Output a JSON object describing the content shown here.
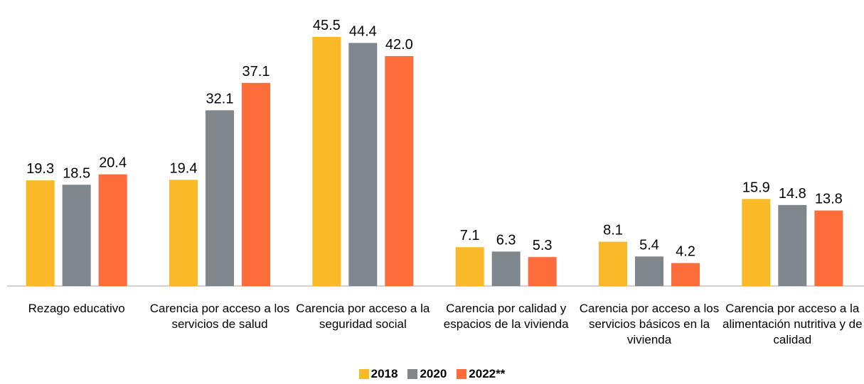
{
  "chart_data": {
    "type": "bar",
    "categories": [
      "Rezago educativo",
      "Carencia por acceso a los servicios de salud",
      "Carencia por acceso a la seguridad social",
      "Carencia por calidad y espacios de la vivienda",
      "Carencia por acceso a los servicios básicos en la vivienda",
      "Carencia por acceso a la alimentación nutritiva y de calidad"
    ],
    "series": [
      {
        "name": "2018",
        "color": "#f9b928",
        "values": [
          19.3,
          19.4,
          45.5,
          7.1,
          8.1,
          15.9
        ],
        "value_labels": [
          "19.3",
          "19.4",
          "45.5",
          "7.1",
          "8.1",
          "15.9"
        ]
      },
      {
        "name": "2020",
        "color": "#7f878d",
        "values": [
          18.5,
          32.1,
          44.4,
          6.3,
          5.4,
          14.8
        ],
        "value_labels": [
          "18.5",
          "32.1",
          "44.4",
          "6.3",
          "5.4",
          "14.8"
        ]
      },
      {
        "name": "2022**",
        "color": "#fd6d3b",
        "values": [
          20.4,
          37.1,
          42.0,
          5.3,
          4.2,
          13.8
        ],
        "value_labels": [
          "20.4",
          "37.1",
          "42.0",
          "5.3",
          "4.2",
          "13.8"
        ]
      }
    ],
    "legend": "bottom"
  }
}
